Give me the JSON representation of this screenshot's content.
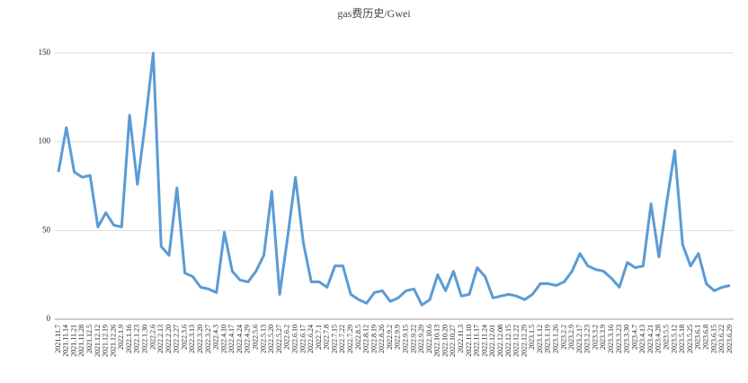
{
  "chart_data": {
    "type": "line",
    "title": "gas费历史/Gwei",
    "categories": [
      "2021.11.7",
      "2021.11.14",
      "2021.11.21",
      "2021.11.28",
      "2021.12.5",
      "2021.12.12",
      "2021.12.19",
      "2021.12.26",
      "2022.1.9",
      "2022.1.16",
      "2022.1.23",
      "2022.1.30",
      "2022.2.6",
      "2022.2.13",
      "2022.2.20",
      "2022.2.27",
      "2022.3.6",
      "2022.3.13",
      "2022.3.20",
      "2022.3.27",
      "2022.4.3",
      "2022.4.10",
      "2022.4.17",
      "2022.4.24",
      "2022.4.29",
      "2022.5.6",
      "2022.5.13",
      "2022.5.20",
      "2022.5.27",
      "2022.6.2",
      "2022.6.10",
      "2022.6.17",
      "2022.6.24",
      "2022.7.1",
      "2022.7.8",
      "2022.7.15",
      "2022.7.22",
      "2022.7.29",
      "2022.8.5",
      "2022.8.12",
      "2022.8.19",
      "2022.8.26",
      "2022.9.2",
      "2022.9.9",
      "2022.9.15",
      "2022.9.22",
      "2022.9.29",
      "2022.10.6",
      "2022.10.13",
      "2022.10.20",
      "2022.10.27",
      "2022.11.3",
      "2022.11.10",
      "2022.11.17",
      "2022.11.24",
      "2022.12.01",
      "2022.12.08",
      "2022.12.15",
      "2022.12.22",
      "2022.12.29",
      "2023.1.5",
      "2023.1.12",
      "2023.1.19",
      "2023.1.26",
      "2023.2.2",
      "2023.2.9",
      "2023.2.17",
      "2023.2.23",
      "2023.3.2",
      "2023.3.9",
      "2023.3.16",
      "2023.3.23",
      "2023.3.30",
      "2023.4.7",
      "2023.4.13",
      "2023.4.21",
      "2023.4.28",
      "2023.5.5",
      "2023.5.12",
      "2023.5.18",
      "2023.5.25",
      "2023.6.1",
      "2023.6.8",
      "2023.6.15",
      "2023.6.22",
      "2023.6.29"
    ],
    "series": [
      {
        "name": "gas费",
        "color": "#5b9bd5",
        "values": [
          83,
          108,
          83,
          80,
          81,
          52,
          60,
          53,
          52,
          115,
          76,
          111,
          150,
          41,
          36,
          74,
          26,
          24,
          18,
          17,
          15,
          49,
          27,
          22,
          21,
          27,
          36,
          72,
          14,
          46,
          80,
          43,
          21,
          21,
          18,
          30,
          30,
          14,
          11,
          9,
          15,
          16,
          10,
          12,
          16,
          17,
          8,
          11,
          25,
          16,
          27,
          13,
          14,
          29,
          24,
          12,
          13,
          14,
          13,
          11,
          14,
          20,
          20,
          19,
          21,
          27,
          37,
          30,
          28,
          27,
          23,
          18,
          32,
          29,
          30,
          65,
          35,
          66,
          95,
          42,
          30,
          37,
          20,
          16,
          18,
          19
        ]
      }
    ],
    "ylim": [
      0,
      150
    ],
    "yticks": [
      0,
      50,
      100,
      150
    ],
    "grid": true
  }
}
